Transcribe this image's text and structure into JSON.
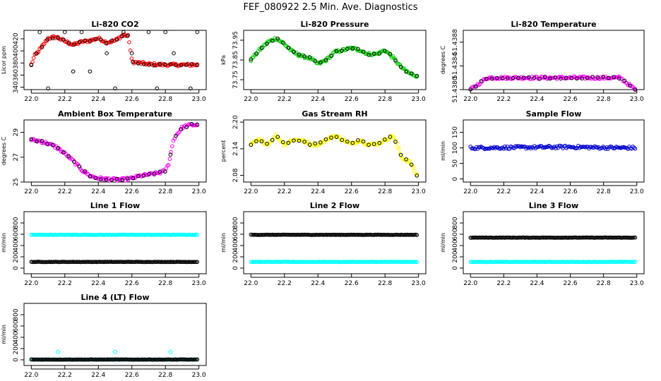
{
  "figure_title": "FEF_080922  2.5 Min. Ave. Diagnostics",
  "chart_data": [
    {
      "type": "scatter",
      "title": "Li-820 CO2",
      "ylabel": "Licor ppm",
      "color": "#ff0000",
      "xlim": [
        22.0,
        23.0
      ],
      "ylim": [
        336,
        434
      ],
      "xticks": [
        "22.0",
        "22.2",
        "22.4",
        "22.6",
        "22.8",
        "23.0"
      ],
      "yticks": [
        340,
        360,
        380,
        400,
        420
      ],
      "series": [
        {
          "name": "points",
          "x": [
            22.0,
            22.02,
            22.05,
            22.08,
            22.1,
            22.15,
            22.2,
            22.25,
            22.3,
            22.35,
            22.4,
            22.45,
            22.5,
            22.55,
            22.58,
            22.6,
            22.65,
            22.7,
            22.8,
            22.9,
            22.99
          ],
          "y": [
            377,
            392,
            402,
            413,
            421,
            423,
            416,
            410,
            415,
            417,
            421,
            414,
            417,
            427,
            424,
            382,
            380,
            378,
            377,
            377,
            377
          ]
        }
      ],
      "outliers": {
        "x": [
          22.05,
          22.1,
          22.2,
          22.25,
          22.3,
          22.35,
          22.45,
          22.5,
          22.55,
          22.6,
          22.7,
          22.75,
          22.8,
          22.85,
          22.95,
          22.99
        ],
        "y": [
          431,
          338,
          431,
          366,
          431,
          366,
          396,
          338,
          431,
          396,
          431,
          338,
          431,
          396,
          338,
          431
        ]
      }
    },
    {
      "type": "scatter",
      "title": "Li-820 Pressure",
      "ylabel": "kPa",
      "color": "#00cc00",
      "xlim": [
        22.0,
        23.0
      ],
      "ylim": [
        73.7,
        74.0
      ],
      "xticks": [
        "22.0",
        "22.2",
        "22.4",
        "22.6",
        "22.8",
        "23.0"
      ],
      "yticks": [
        73.75,
        73.85,
        73.95
      ],
      "ytick_labels": [
        "73.75",
        "73.85",
        "73.95"
      ],
      "series": [
        {
          "name": "points",
          "x": [
            22.0,
            22.05,
            22.1,
            22.15,
            22.2,
            22.25,
            22.3,
            22.35,
            22.4,
            22.45,
            22.5,
            22.55,
            22.6,
            22.65,
            22.7,
            22.75,
            22.8,
            22.85,
            22.9,
            22.95,
            22.99
          ],
          "y": [
            73.85,
            73.9,
            73.94,
            73.96,
            73.93,
            73.89,
            73.87,
            73.86,
            73.83,
            73.85,
            73.89,
            73.9,
            73.91,
            73.9,
            73.88,
            73.88,
            73.9,
            73.86,
            73.81,
            73.78,
            73.77
          ]
        }
      ]
    },
    {
      "type": "scatter",
      "title": "Li-820 Temperature",
      "ylabel": "degrees C",
      "color": "#ff00ff",
      "xlim": [
        22.0,
        23.0
      ],
      "ylim": [
        51.438,
        51.439
      ],
      "xticks": [
        "22.0",
        "22.2",
        "22.4",
        "22.6",
        "22.8",
        "23.0"
      ],
      "yticks": [
        51.438,
        51.4384,
        51.4388
      ],
      "ytick_labels": [
        "51.4380",
        "51.4384",
        "51.4388"
      ],
      "series": [
        {
          "name": "points",
          "x": [
            22.0,
            22.1,
            22.2,
            22.3,
            22.4,
            22.5,
            22.6,
            22.7,
            22.8,
            22.9,
            22.99
          ],
          "y": [
            51.438,
            51.4382,
            51.4382,
            51.4382,
            51.4382,
            51.4382,
            51.4382,
            51.4382,
            51.4382,
            51.4382,
            51.438
          ]
        }
      ]
    },
    {
      "type": "scatter",
      "title": "Ambient Box Temperature",
      "ylabel": "degrees C",
      "color": "#ff00ff",
      "xlim": [
        22.0,
        23.0
      ],
      "ylim": [
        25,
        30
      ],
      "xticks": [
        "22.0",
        "22.2",
        "22.4",
        "22.6",
        "22.8",
        "23.0"
      ],
      "yticks": [
        25,
        27,
        29
      ],
      "series": [
        {
          "name": "points",
          "x": [
            22.0,
            22.05,
            22.1,
            22.15,
            22.2,
            22.25,
            22.3,
            22.35,
            22.4,
            22.45,
            22.5,
            22.55,
            22.6,
            22.65,
            22.7,
            22.75,
            22.8,
            22.82,
            22.85,
            22.9,
            22.95,
            22.99
          ],
          "y": [
            28.4,
            28.3,
            28.1,
            27.8,
            27.3,
            26.7,
            26.0,
            25.5,
            25.3,
            25.25,
            25.2,
            25.2,
            25.3,
            25.5,
            25.6,
            25.7,
            25.9,
            26.5,
            28.5,
            29.4,
            29.6,
            29.6
          ]
        }
      ]
    },
    {
      "type": "scatter",
      "title": "Gas Stream RH",
      "ylabel": "percent",
      "color": "#ffff00",
      "xlim": [
        22.0,
        23.0
      ],
      "ylim": [
        2.065,
        2.205
      ],
      "xticks": [
        "22.0",
        "22.2",
        "22.4",
        "22.6",
        "22.8",
        "23.0"
      ],
      "yticks": [
        2.08,
        2.14,
        2.2
      ],
      "ytick_labels": [
        "2.08",
        "2.14",
        "2.20"
      ],
      "series": [
        {
          "name": "points",
          "x": [
            22.0,
            22.05,
            22.1,
            22.15,
            22.2,
            22.25,
            22.3,
            22.35,
            22.4,
            22.45,
            22.5,
            22.55,
            22.6,
            22.65,
            22.7,
            22.75,
            22.8,
            22.85,
            22.9,
            22.95,
            22.99
          ],
          "y": [
            2.15,
            2.16,
            2.15,
            2.17,
            2.15,
            2.16,
            2.16,
            2.15,
            2.15,
            2.16,
            2.17,
            2.16,
            2.15,
            2.16,
            2.15,
            2.15,
            2.16,
            2.17,
            2.12,
            2.11,
            2.08
          ]
        }
      ]
    },
    {
      "type": "scatter",
      "title": "Sample Flow",
      "ylabel": "ml/min",
      "color": "#0000cc",
      "xlim": [
        22.0,
        23.0
      ],
      "ylim": [
        -10,
        190
      ],
      "xticks": [
        "22.0",
        "22.2",
        "22.4",
        "22.6",
        "22.8",
        "23.0"
      ],
      "yticks": [
        0,
        50,
        100,
        150
      ],
      "series": [
        {
          "name": "points",
          "x": [
            22.0,
            22.2,
            22.4,
            22.6,
            22.8,
            22.99
          ],
          "y": [
            100,
            101,
            102,
            103,
            101,
            100
          ]
        }
      ]
    },
    {
      "type": "scatter",
      "title": "Line 1 Flow",
      "ylabel": "ml/min",
      "color": "#00ffff",
      "xlim": [
        22.0,
        23.0
      ],
      "ylim": [
        -100,
        1000
      ],
      "xticks": [
        "22.0",
        "22.2",
        "22.4",
        "22.6",
        "22.8",
        "23.0"
      ],
      "yticks": [
        0,
        200,
        400,
        600,
        800
      ],
      "series": [
        {
          "name": "cyan",
          "x": [
            22.0,
            22.2,
            22.4,
            22.6,
            22.8,
            22.99
          ],
          "y": [
            590,
            590,
            590,
            590,
            590,
            590
          ]
        },
        {
          "name": "black",
          "x": [
            22.0,
            22.2,
            22.4,
            22.6,
            22.8,
            22.99
          ],
          "y": [
            110,
            110,
            110,
            110,
            110,
            110
          ]
        }
      ]
    },
    {
      "type": "scatter",
      "title": "Line 2 Flow",
      "ylabel": "ml/min",
      "color": "#00ffff",
      "xlim": [
        22.0,
        23.0
      ],
      "ylim": [
        -100,
        1000
      ],
      "xticks": [
        "22.0",
        "22.2",
        "22.4",
        "22.6",
        "22.8",
        "23.0"
      ],
      "yticks": [
        0,
        200,
        400,
        600,
        800
      ],
      "series": [
        {
          "name": "cyan",
          "x": [
            22.0,
            22.2,
            22.4,
            22.6,
            22.8,
            22.99
          ],
          "y": [
            110,
            110,
            110,
            110,
            110,
            110
          ]
        },
        {
          "name": "black",
          "x": [
            22.0,
            22.2,
            22.4,
            22.6,
            22.8,
            22.99
          ],
          "y": [
            590,
            590,
            590,
            590,
            590,
            590
          ]
        }
      ]
    },
    {
      "type": "scatter",
      "title": "Line 3 Flow",
      "ylabel": "ml/min",
      "color": "#00ffff",
      "xlim": [
        22.0,
        23.0
      ],
      "ylim": [
        -100,
        1000
      ],
      "xticks": [
        "22.0",
        "22.2",
        "22.4",
        "22.6",
        "22.8",
        "23.0"
      ],
      "yticks": [
        0,
        200,
        400,
        600,
        800
      ],
      "series": [
        {
          "name": "cyan",
          "x": [
            22.0,
            22.2,
            22.4,
            22.6,
            22.8,
            22.99
          ],
          "y": [
            110,
            110,
            110,
            110,
            110,
            110
          ]
        },
        {
          "name": "black",
          "x": [
            22.0,
            22.2,
            22.4,
            22.6,
            22.8,
            22.99
          ],
          "y": [
            540,
            540,
            540,
            540,
            540,
            540
          ]
        }
      ]
    },
    {
      "type": "scatter",
      "title": "Line 4 (LT) Flow",
      "ylabel": "ml/min",
      "color": "#00ffff",
      "xlim": [
        22.0,
        23.0
      ],
      "ylim": [
        -100,
        1000
      ],
      "xticks": [
        "22.0",
        "22.2",
        "22.4",
        "22.6",
        "22.8",
        "23.0"
      ],
      "yticks": [
        0,
        200,
        400,
        600,
        800
      ],
      "series": [
        {
          "name": "cyan",
          "x": [
            22.0,
            22.2,
            22.4,
            22.6,
            22.8,
            22.99
          ],
          "y": [
            5,
            5,
            5,
            5,
            5,
            5
          ]
        },
        {
          "name": "black",
          "x": [
            22.0,
            22.2,
            22.4,
            22.6,
            22.8,
            22.99
          ],
          "y": [
            5,
            5,
            5,
            5,
            5,
            5
          ]
        }
      ],
      "outliers": {
        "x": [
          22.16,
          22.5,
          22.83
        ],
        "y": [
          140,
          140,
          140
        ]
      }
    }
  ]
}
